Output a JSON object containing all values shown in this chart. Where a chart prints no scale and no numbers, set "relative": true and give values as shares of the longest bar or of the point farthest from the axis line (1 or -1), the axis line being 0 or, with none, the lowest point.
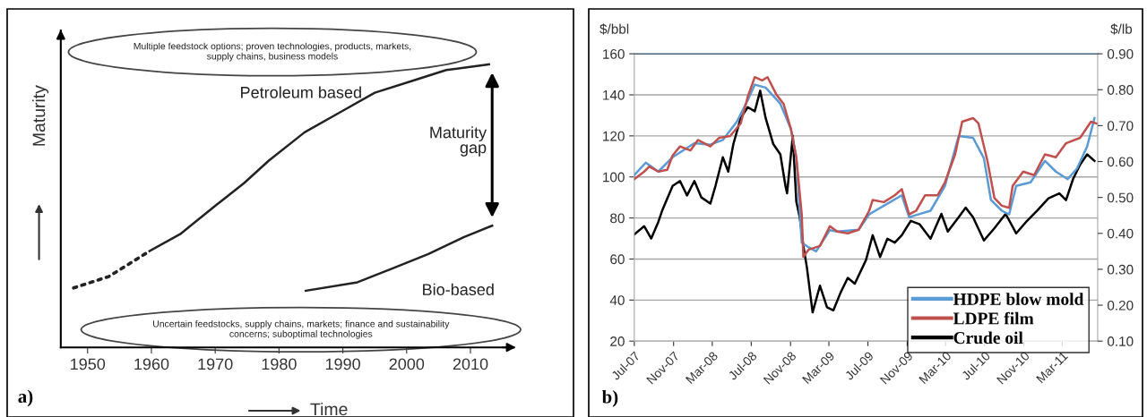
{
  "chart_data": [
    {
      "type": "line",
      "relative": true,
      "xlabel": "Time",
      "ylabel": "Maturity",
      "xlim": [
        1945.8,
        2016.8
      ],
      "xticks": [
        1950,
        1960,
        1970,
        1980,
        1990,
        2000,
        2010
      ],
      "tick_labels": "x",
      "grid": false,
      "legend": false,
      "series": [
        {
          "color": "#222222",
          "line_style": "dotted",
          "x": [
            1947.8,
            1953.3,
            1959.7
          ],
          "values": [
            0.21,
            0.25,
            0.34
          ]
        },
        {
          "color": "#222222",
          "line_style": "solid",
          "x": [
            1959.7,
            1964.5,
            1970,
            1974.5,
            1978.4,
            1984,
            1989.5,
            1995,
            2000.6,
            2006.2,
            2012.9
          ],
          "values": [
            0.34,
            0.4,
            0.5,
            0.58,
            0.66,
            0.76,
            0.83,
            0.9,
            0.94,
            0.98,
            1.0
          ]
        },
        {
          "color": "#222222",
          "line_style": "solid",
          "x": [
            1984.2,
            1992.3,
            1997.9,
            2003.4,
            2009,
            2013.4
          ],
          "values": [
            0.2,
            0.23,
            0.28,
            0.33,
            0.39,
            0.43
          ]
        }
      ],
      "annotations": [
        "Multiple feedstock options; proven technologies, products, markets,\nsupply chains, business models",
        "Uncertain feedstocks, supply chains, markets; finance and sustainability\nconcerns; suboptimal technologies",
        "a)",
        "Petroleum based",
        "Bio-based",
        "Maturity\ngap"
      ]
    },
    {
      "type": "line",
      "ylabel": "$/bbl",
      "y2label": "$/lb",
      "xlim": [
        "2007-07-01",
        "2011-06-20"
      ],
      "xticks": [
        {
          "value": "2007-07-01",
          "label": "Jul-07"
        },
        {
          "value": "2007-11-01",
          "label": "Nov-07"
        },
        {
          "value": "2008-03-01",
          "label": "Mar-08"
        },
        {
          "value": "2008-07-01",
          "label": "Jul-08"
        },
        {
          "value": "2008-11-01",
          "label": "Nov-08"
        },
        {
          "value": "2009-03-01",
          "label": "Mar-09"
        },
        {
          "value": "2009-07-01",
          "label": "Jul-09"
        },
        {
          "value": "2009-11-01",
          "label": "Nov-09"
        },
        {
          "value": "2010-03-01",
          "label": "Mar-10"
        },
        {
          "value": "2010-07-01",
          "label": "Jul-10"
        },
        {
          "value": "2010-11-01",
          "label": "Nov-10"
        },
        {
          "value": "2011-03-01",
          "label": "Mar-11"
        }
      ],
      "ylim": [
        20,
        160
      ],
      "yticks": [
        20,
        40,
        60,
        80,
        100,
        120,
        140,
        160
      ],
      "y2lim": [
        0.1,
        0.9
      ],
      "y2ticks": [
        {
          "value": 0.1,
          "label": "0.10"
        },
        {
          "value": 0.2,
          "label": "0.20"
        },
        {
          "value": 0.3,
          "label": "0.30"
        },
        {
          "value": 0.4,
          "label": "0.40"
        },
        {
          "value": 0.5,
          "label": "0.50"
        },
        {
          "value": 0.6,
          "label": "0.60"
        },
        {
          "value": 0.7,
          "label": "0.70"
        },
        {
          "value": 0.8,
          "label": "0.80"
        },
        {
          "value": 0.9,
          "label": "0.90"
        }
      ],
      "grid": "y",
      "legend": "bottom right",
      "series": [
        {
          "name": "HDPE blow mold",
          "color": "#5b9bd5",
          "axis": "y2",
          "x": [
            "2007-07-01",
            "2007-08-06",
            "2007-09-14",
            "2007-10-29",
            "2008-01-05",
            "2008-02-24",
            "2008-04-03",
            "2008-05-17",
            "2008-06-20",
            "2008-07-12",
            "2008-08-15",
            "2008-09-30",
            "2008-11-02",
            "2008-11-19",
            "2008-12-06",
            "2008-12-28",
            "2009-01-20",
            "2009-03-04",
            "2009-03-27",
            "2009-06-02",
            "2009-07-05",
            "2009-08-20",
            "2009-10-15",
            "2009-11-07",
            "2009-12-10",
            "2010-01-13",
            "2010-02-27",
            "2010-04-11",
            "2010-05-26",
            "2010-06-29",
            "2010-07-21",
            "2010-08-24",
            "2010-09-16",
            "2010-10-08",
            "2010-11-22",
            "2011-01-06",
            "2011-02-09",
            "2011-03-18",
            "2011-04-16",
            "2011-05-18",
            "2011-06-10"
          ],
          "values": [
            0.562,
            0.597,
            0.572,
            0.612,
            0.651,
            0.647,
            0.66,
            0.711,
            0.771,
            0.814,
            0.806,
            0.761,
            0.691,
            0.612,
            0.374,
            0.361,
            0.35,
            0.409,
            0.405,
            0.41,
            0.453,
            0.477,
            0.506,
            0.445,
            0.454,
            0.463,
            0.532,
            0.671,
            0.666,
            0.609,
            0.493,
            0.463,
            0.453,
            0.532,
            0.542,
            0.602,
            0.572,
            0.551,
            0.58,
            0.642,
            0.721
          ]
        },
        {
          "name": "LDPE film",
          "color": "#c0504d",
          "axis": "y2",
          "x": [
            "2007-07-01",
            "2007-08-01",
            "2007-08-17",
            "2007-09-14",
            "2007-10-12",
            "2007-10-29",
            "2007-11-21",
            "2007-12-24",
            "2008-01-16",
            "2008-02-24",
            "2008-03-22",
            "2008-04-26",
            "2008-05-29",
            "2008-06-20",
            "2008-07-12",
            "2008-08-04",
            "2008-08-21",
            "2008-09-18",
            "2008-10-10",
            "2008-11-02",
            "2008-11-19",
            "2008-12-06",
            "2008-12-11",
            "2008-12-28",
            "2009-02-01",
            "2009-03-04",
            "2009-03-27",
            "2009-04-29",
            "2009-06-02",
            "2009-07-05",
            "2009-07-16",
            "2009-08-20",
            "2009-09-23",
            "2009-10-15",
            "2009-11-07",
            "2009-11-29",
            "2009-12-27",
            "2010-02-04",
            "2010-02-27",
            "2010-03-31",
            "2010-04-22",
            "2010-05-26",
            "2010-06-12",
            "2010-07-10",
            "2010-08-01",
            "2010-08-24",
            "2010-09-16",
            "2010-09-27",
            "2010-10-30",
            "2010-12-03",
            "2011-01-06",
            "2011-02-09",
            "2011-03-13",
            "2011-04-26",
            "2011-05-30",
            "2011-06-16"
          ],
          "values": [
            0.551,
            0.572,
            0.586,
            0.572,
            0.577,
            0.617,
            0.642,
            0.631,
            0.66,
            0.642,
            0.666,
            0.671,
            0.706,
            0.78,
            0.835,
            0.826,
            0.835,
            0.786,
            0.761,
            0.691,
            0.612,
            0.453,
            0.335,
            0.355,
            0.365,
            0.42,
            0.405,
            0.4,
            0.41,
            0.463,
            0.493,
            0.487,
            0.506,
            0.523,
            0.453,
            0.463,
            0.506,
            0.506,
            0.542,
            0.62,
            0.711,
            0.721,
            0.706,
            0.602,
            0.498,
            0.477,
            0.471,
            0.532,
            0.572,
            0.562,
            0.62,
            0.612,
            0.651,
            0.666,
            0.711,
            0.706
          ]
        },
        {
          "name": "Crude oil",
          "color": "#000000",
          "x": [
            "2007-07-01",
            "2007-08-01",
            "2007-08-23",
            "2007-09-14",
            "2007-09-26",
            "2007-10-29",
            "2007-11-21",
            "2007-12-13",
            "2008-01-05",
            "2008-01-27",
            "2008-02-24",
            "2008-03-11",
            "2008-04-03",
            "2008-04-20",
            "2008-05-06",
            "2008-05-29",
            "2008-06-20",
            "2008-07-12",
            "2008-07-29",
            "2008-08-15",
            "2008-09-08",
            "2008-09-30",
            "2008-10-16",
            "2008-10-21",
            "2008-11-08",
            "2008-11-19",
            "2008-11-30",
            "2008-12-11",
            "2008-12-22",
            "2009-01-09",
            "2009-02-01",
            "2009-02-23",
            "2009-03-15",
            "2009-04-07",
            "2009-04-29",
            "2009-05-21",
            "2009-06-25",
            "2009-07-16",
            "2009-08-08",
            "2009-08-31",
            "2009-09-23",
            "2009-10-15",
            "2009-11-12",
            "2009-12-10",
            "2010-01-13",
            "2010-02-16",
            "2010-03-08",
            "2010-04-11",
            "2010-05-03",
            "2010-05-26",
            "2010-06-29",
            "2010-08-01",
            "2010-09-05",
            "2010-10-08",
            "2010-11-11",
            "2010-12-14",
            "2011-01-17",
            "2011-02-20",
            "2011-03-13",
            "2011-04-04",
            "2011-04-26",
            "2011-05-18",
            "2011-06-10"
          ],
          "values": [
            72,
            76,
            70,
            78,
            83.5,
            95.6,
            98,
            91,
            98,
            90,
            87,
            95.6,
            109.6,
            102.6,
            116,
            128.7,
            134,
            132,
            142,
            128.7,
            116,
            111,
            95.6,
            92,
            120,
            88,
            80,
            66.4,
            56,
            34,
            47,
            36.5,
            35,
            43.8,
            50.8,
            48,
            59.5,
            71.6,
            61,
            69.9,
            68,
            71.6,
            78.6,
            76.9,
            69.9,
            82,
            73.4,
            80.4,
            85,
            80.4,
            69,
            75,
            82,
            72.5,
            78.6,
            83.8,
            89.6,
            92,
            88.7,
            99,
            106,
            111,
            107.8
          ]
        }
      ],
      "annotations": [
        "b)"
      ]
    }
  ]
}
